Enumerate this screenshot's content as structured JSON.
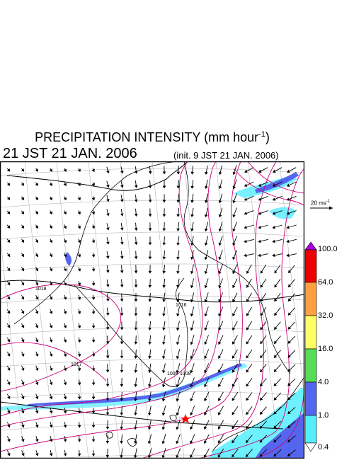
{
  "title": {
    "main": "PRECIPITATION INTENSITY (mm hour",
    "exponent": "-1",
    "close": ")"
  },
  "valid_time": "21 JST 21 JAN. 2006",
  "init_time": "(init. 9 JST 21 JAN. 2006)",
  "wind_reference": {
    "label": "20 ms",
    "exponent": "-1"
  },
  "isobar_labels": [
    "1018",
    "1017",
    "1016",
    "1009",
    "1008"
  ],
  "precip_scale": {
    "levels": [
      "100.0",
      "64.0",
      "32.0",
      "16.0",
      "4.0",
      "1.0",
      "0.4"
    ],
    "colors": [
      "#aa00dd",
      "#ee0000",
      "#ffa040",
      "#ffff66",
      "#55dd55",
      "#5566ee",
      "#55eeff",
      "#ffffff"
    ]
  },
  "colors": {
    "isobar": "#cc0077",
    "coast": "#000000",
    "graticule": "#aaaaaa",
    "light_precip": "#55eeff",
    "moderate_precip": "#5566ee",
    "station_marker": "#ff0000"
  },
  "markers": [
    {
      "name": "station",
      "symbol": "star"
    }
  ]
}
